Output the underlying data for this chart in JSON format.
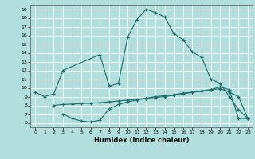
{
  "xlabel": "Humidex (Indice chaleur)",
  "bg_color": "#b2dede",
  "line_color": "#1a6b6b",
  "grid_color": "#ffffff",
  "xlim": [
    -0.5,
    23.5
  ],
  "ylim": [
    5.5,
    19.5
  ],
  "xticks": [
    0,
    1,
    2,
    3,
    4,
    5,
    6,
    7,
    8,
    9,
    10,
    11,
    12,
    13,
    14,
    15,
    16,
    17,
    18,
    19,
    20,
    21,
    22,
    23
  ],
  "yticks": [
    6,
    7,
    8,
    9,
    10,
    11,
    12,
    13,
    14,
    15,
    16,
    17,
    18,
    19
  ],
  "line1_x": [
    0,
    1,
    2,
    3,
    7,
    8,
    9,
    10,
    11,
    12,
    13,
    14,
    15,
    16,
    17,
    18,
    19,
    20,
    21,
    22,
    23
  ],
  "line1_y": [
    9.5,
    9.0,
    9.3,
    12.0,
    13.8,
    10.2,
    10.5,
    15.8,
    17.8,
    19.0,
    18.6,
    18.1,
    16.2,
    15.5,
    14.1,
    13.5,
    11.0,
    10.5,
    9.0,
    7.5,
    6.5
  ],
  "line2_x": [
    2,
    3,
    4,
    5,
    6,
    7,
    8,
    9,
    10,
    11,
    12,
    13,
    14,
    15,
    16,
    17,
    18,
    19,
    20,
    21,
    22,
    23
  ],
  "line2_y": [
    8.0,
    8.1,
    8.15,
    8.2,
    8.25,
    8.3,
    8.4,
    8.5,
    8.6,
    8.7,
    8.8,
    9.0,
    9.1,
    9.2,
    9.4,
    9.5,
    9.6,
    9.8,
    9.9,
    9.5,
    9.0,
    6.5
  ],
  "line3_x": [
    3,
    4,
    5,
    6,
    7,
    8,
    9,
    10,
    11,
    12,
    13,
    14,
    15,
    16,
    17,
    18,
    19,
    20,
    21,
    22,
    23
  ],
  "line3_y": [
    7.0,
    6.5,
    6.2,
    6.1,
    6.3,
    7.6,
    8.1,
    8.4,
    8.6,
    8.8,
    8.9,
    9.0,
    9.15,
    9.3,
    9.5,
    9.65,
    9.8,
    10.1,
    9.8,
    6.5,
    6.5
  ]
}
